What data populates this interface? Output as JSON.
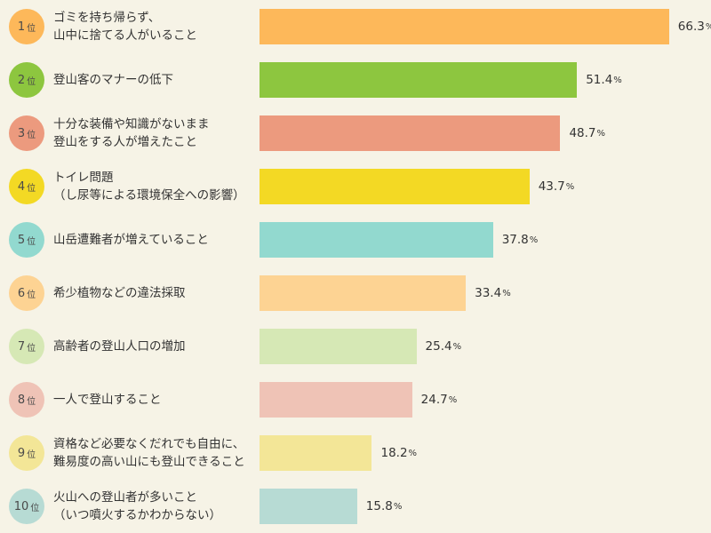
{
  "chart_data": {
    "type": "bar",
    "orientation": "horizontal",
    "rank_unit": "位",
    "value_unit": "%",
    "xlim": [
      0,
      100
    ],
    "items": [
      {
        "rank": "1",
        "lines": [
          "ゴミを持ち帰らず、",
          "山中に捨てる人がいること"
        ],
        "value": 66.3,
        "color": "#fdb85a",
        "badge_color": "#fdb85a"
      },
      {
        "rank": "2",
        "lines": [
          "登山客のマナーの低下"
        ],
        "value": 51.4,
        "color": "#8dc63f",
        "badge_color": "#8dc63f"
      },
      {
        "rank": "3",
        "lines": [
          "十分な装備や知識がないまま",
          "登山をする人が増えたこと"
        ],
        "value": 48.7,
        "color": "#ec9a7e",
        "badge_color": "#ec9a7e"
      },
      {
        "rank": "4",
        "lines": [
          "トイレ問題",
          "（し尿等による環境保全への影響）"
        ],
        "value": 43.7,
        "color": "#f3d924",
        "badge_color": "#f3d924"
      },
      {
        "rank": "5",
        "lines": [
          "山岳遭難者が増えていること"
        ],
        "value": 37.8,
        "color": "#92d9cf",
        "badge_color": "#92d9cf"
      },
      {
        "rank": "6",
        "lines": [
          "希少植物などの違法採取"
        ],
        "value": 33.4,
        "color": "#fdd393",
        "badge_color": "#fdd393"
      },
      {
        "rank": "7",
        "lines": [
          "高齢者の登山人口の増加"
        ],
        "value": 25.4,
        "color": "#d6e8b5",
        "badge_color": "#d6e8b5"
      },
      {
        "rank": "8",
        "lines": [
          "一人で登山すること"
        ],
        "value": 24.7,
        "color": "#efc3b6",
        "badge_color": "#efc3b6"
      },
      {
        "rank": "9",
        "lines": [
          "資格など必要なくだれでも自由に、",
          "難易度の高い山にも登山できること"
        ],
        "value": 18.2,
        "color": "#f3e697",
        "badge_color": "#f3e697"
      },
      {
        "rank": "10",
        "lines": [
          "火山への登山者が多いこと",
          "（いつ噴火するかわからない）"
        ],
        "value": 15.8,
        "color": "#b7dbd4",
        "badge_color": "#b7dbd4"
      }
    ]
  }
}
